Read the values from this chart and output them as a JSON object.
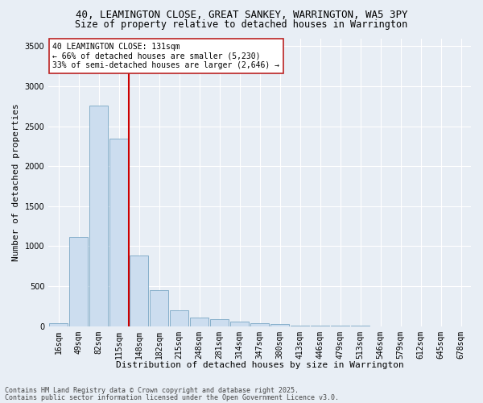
{
  "title1": "40, LEAMINGTON CLOSE, GREAT SANKEY, WARRINGTON, WA5 3PY",
  "title2": "Size of property relative to detached houses in Warrington",
  "xlabel": "Distribution of detached houses by size in Warrington",
  "ylabel": "Number of detached properties",
  "categories": [
    "16sqm",
    "49sqm",
    "82sqm",
    "115sqm",
    "148sqm",
    "182sqm",
    "215sqm",
    "248sqm",
    "281sqm",
    "314sqm",
    "347sqm",
    "380sqm",
    "413sqm",
    "446sqm",
    "479sqm",
    "513sqm",
    "546sqm",
    "579sqm",
    "612sqm",
    "645sqm",
    "678sqm"
  ],
  "values": [
    40,
    1120,
    2760,
    2340,
    880,
    450,
    200,
    105,
    90,
    60,
    35,
    22,
    10,
    5,
    3,
    2,
    1,
    1,
    1,
    1,
    1
  ],
  "bar_color": "#ccddef",
  "bar_edge_color": "#6699bb",
  "vline_color": "#cc0000",
  "annotation_text": "40 LEAMINGTON CLOSE: 131sqm\n← 66% of detached houses are smaller (5,230)\n33% of semi-detached houses are larger (2,646) →",
  "annotation_box_color": "#ffffff",
  "annotation_box_edge_color": "#bb2222",
  "ylim": [
    0,
    3600
  ],
  "yticks": [
    0,
    500,
    1000,
    1500,
    2000,
    2500,
    3000,
    3500
  ],
  "bg_color": "#e8eef5",
  "grid_color": "#ffffff",
  "footer1": "Contains HM Land Registry data © Crown copyright and database right 2025.",
  "footer2": "Contains public sector information licensed under the Open Government Licence v3.0.",
  "title1_fontsize": 9,
  "title2_fontsize": 8.5,
  "axis_label_fontsize": 8,
  "tick_fontsize": 7,
  "annotation_fontsize": 7,
  "footer_fontsize": 6
}
